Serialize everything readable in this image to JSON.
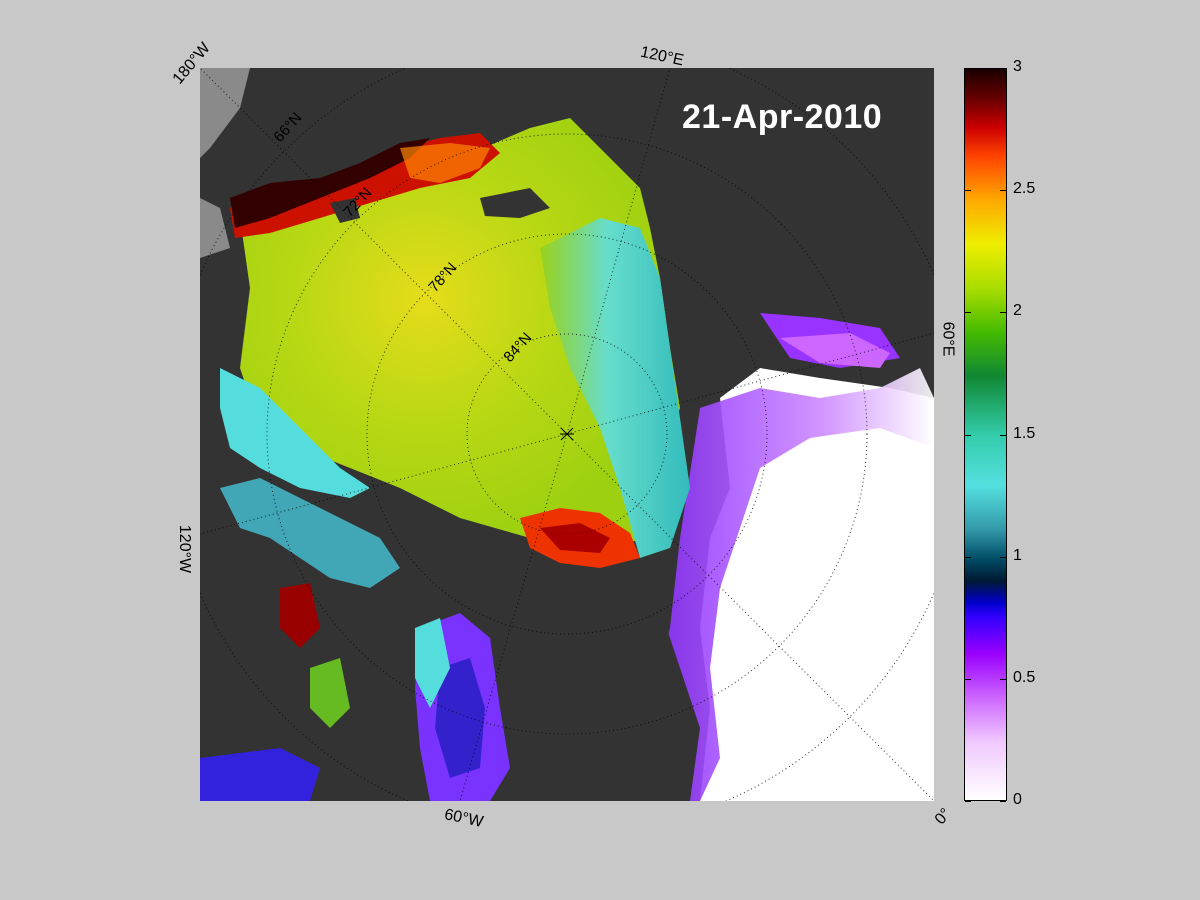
{
  "date_label": "21-Apr-2010",
  "edge_labels": {
    "top_left": "180°W",
    "top_right": "120°E",
    "right": "60°E",
    "bottom_right": "0°",
    "bottom": "60°W",
    "left": "120°W"
  },
  "lat_labels": {
    "lat66": "66°N",
    "lat72": "72°N",
    "lat78": "78°N",
    "lat84": "84°N"
  },
  "colorbar": {
    "ticks": [
      "3",
      "2.5",
      "2",
      "1.5",
      "1",
      "0.5",
      "0"
    ],
    "min": 0,
    "max": 3
  },
  "colors": {
    "land": "#333333",
    "land_gray": "#8a8a8a",
    "background": "#c8c8c8",
    "open_water": "#ffffff"
  }
}
